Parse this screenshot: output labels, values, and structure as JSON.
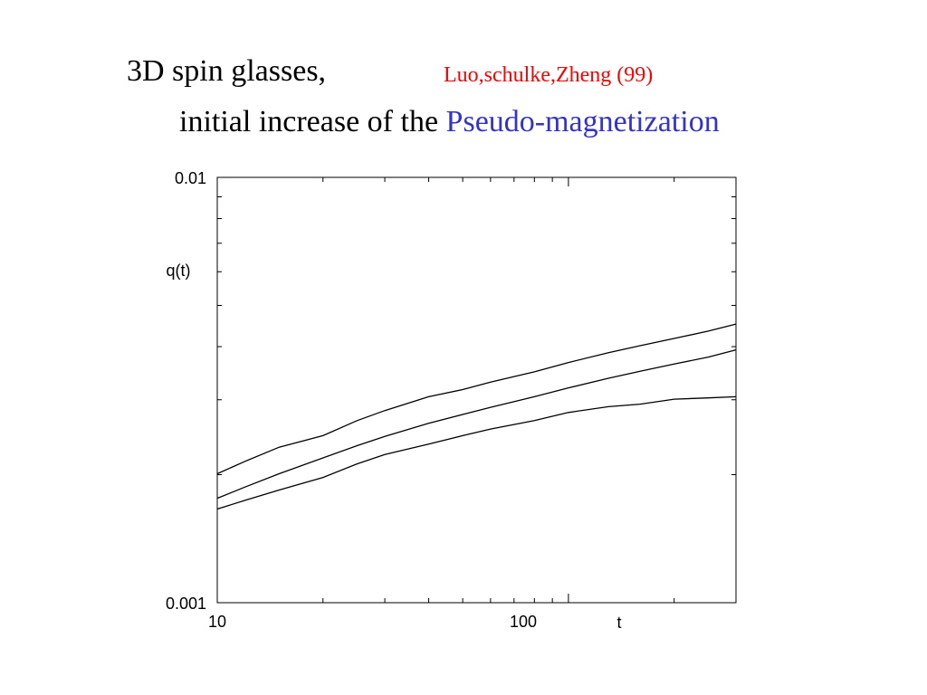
{
  "slide": {
    "title_line1": "3D spin glasses,",
    "citation": "Luo,schulke,Zheng (99)",
    "title_line2_prefix": "initial increase of the",
    "title_line2_highlight": "Pseudo-magnetization"
  },
  "colors": {
    "citation": "#ff0000",
    "highlight": "#3333cc",
    "line": "#000000"
  },
  "chart_data": {
    "type": "line",
    "title": "",
    "xlabel": "t",
    "ylabel": "q(t)",
    "xscale": "log",
    "yscale": "log",
    "xlim": [
      10,
      300
    ],
    "ylim": [
      0.001,
      0.01
    ],
    "grid": false,
    "x_tick_labels": [
      {
        "value": 10,
        "label": "10"
      },
      {
        "value": 100,
        "label": "100"
      }
    ],
    "y_tick_labels": [
      {
        "value": 0.001,
        "label": "0.001"
      },
      {
        "value": 0.01,
        "label": "0.01"
      }
    ],
    "series": [
      {
        "x": [
          10,
          12,
          15,
          20,
          25,
          30,
          40,
          50,
          60,
          80,
          100,
          130,
          160,
          200,
          250,
          300
        ],
        "values": [
          0.00201,
          0.00215,
          0.00232,
          0.00247,
          0.00268,
          0.00283,
          0.00305,
          0.00317,
          0.0033,
          0.00349,
          0.00367,
          0.00387,
          0.00402,
          0.00418,
          0.00435,
          0.00452
        ]
      },
      {
        "x": [
          10,
          12,
          15,
          20,
          25,
          30,
          40,
          50,
          60,
          80,
          100,
          130,
          160,
          200,
          250,
          300
        ],
        "values": [
          0.00176,
          0.00187,
          0.00201,
          0.00219,
          0.00234,
          0.00246,
          0.00264,
          0.00277,
          0.00288,
          0.00305,
          0.0032,
          0.00337,
          0.0035,
          0.00364,
          0.00378,
          0.00393
        ]
      },
      {
        "x": [
          10,
          12,
          15,
          20,
          25,
          30,
          40,
          50,
          60,
          80,
          100,
          130,
          160,
          200,
          250,
          300
        ],
        "values": [
          0.00166,
          0.00174,
          0.00184,
          0.00197,
          0.00212,
          0.00223,
          0.00236,
          0.00247,
          0.00256,
          0.00268,
          0.0028,
          0.00289,
          0.00293,
          0.00301,
          0.00303,
          0.00305
        ]
      }
    ]
  }
}
